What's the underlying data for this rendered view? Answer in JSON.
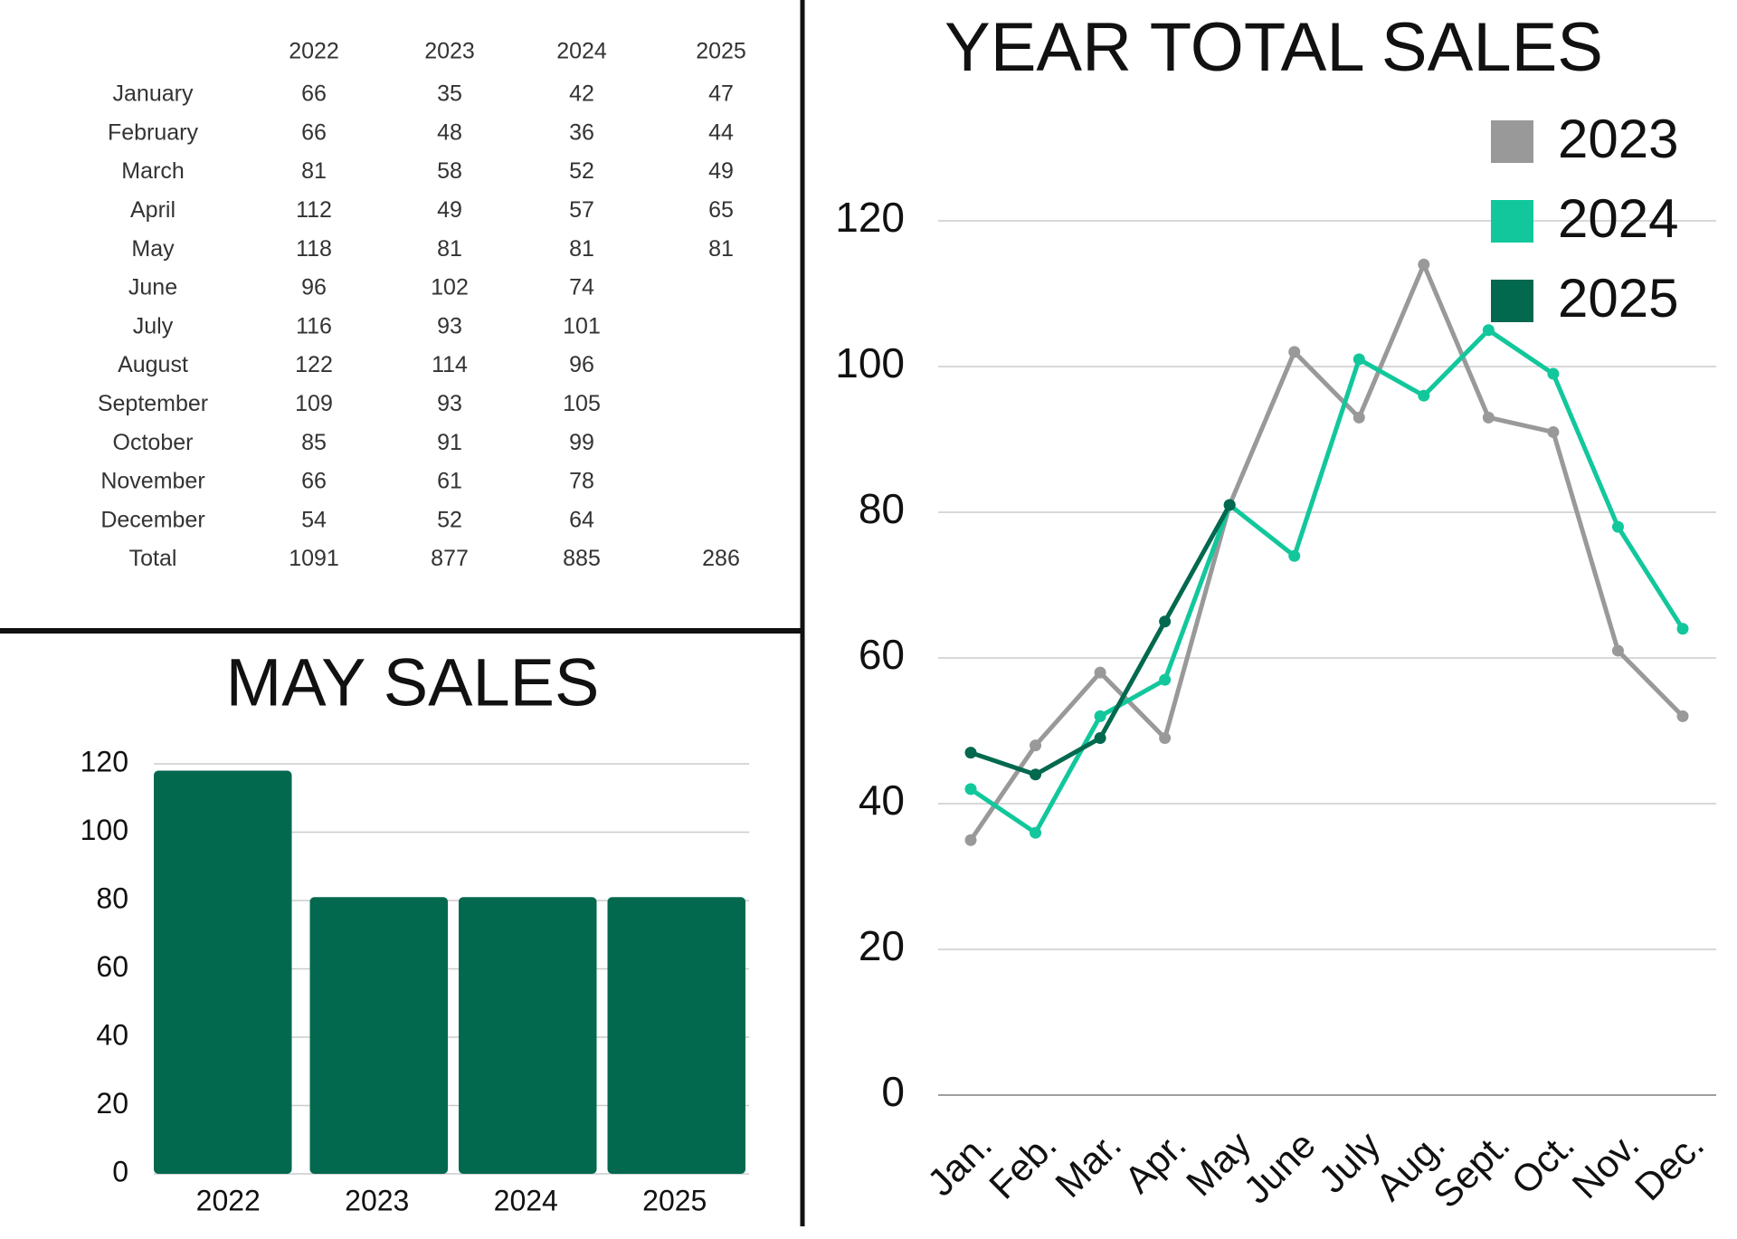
{
  "table": {
    "header": [
      "2022",
      "2023",
      "2024",
      "2025"
    ],
    "rows": [
      [
        "January",
        "66",
        "35",
        "42",
        "47"
      ],
      [
        "February",
        "66",
        "48",
        "36",
        "44"
      ],
      [
        "March",
        "81",
        "58",
        "52",
        "49"
      ],
      [
        "April",
        "112",
        "49",
        "57",
        "65"
      ],
      [
        "May",
        "118",
        "81",
        "81",
        "81"
      ],
      [
        "June",
        "96",
        "102",
        "74"
      ],
      [
        "July",
        "116",
        "93",
        "101"
      ],
      [
        "August",
        "122",
        "114",
        "96"
      ],
      [
        "September",
        "109",
        "93",
        "105"
      ],
      [
        "October",
        "85",
        "91",
        "99"
      ],
      [
        "November",
        "66",
        "61",
        "78"
      ],
      [
        "December",
        "54",
        "52",
        "64"
      ],
      [
        "Total",
        "1091",
        "877",
        "885",
        "286"
      ]
    ]
  },
  "chart_data": [
    {
      "type": "bar",
      "title": "MAY SALES",
      "categories": [
        "2022",
        "2023",
        "2024",
        "2025"
      ],
      "values": [
        118,
        81,
        81,
        81
      ],
      "color": "#02694f",
      "ylim": [
        0,
        120
      ],
      "yticks": [
        0,
        20,
        40,
        60,
        80,
        100,
        120
      ],
      "grid": true
    },
    {
      "type": "line",
      "title": "YEAR TOTAL SALES",
      "categories": [
        "Jan.",
        "Feb.",
        "Mar.",
        "Apr.",
        "May",
        "June",
        "July",
        "Aug.",
        "Sept.",
        "Oct.",
        "Nov.",
        "Dec."
      ],
      "series": [
        {
          "name": "2023",
          "color": "#999999",
          "values": [
            35,
            48,
            58,
            49,
            81,
            102,
            93,
            114,
            93,
            91,
            61,
            52
          ]
        },
        {
          "name": "2024",
          "color": "#12c79b",
          "values": [
            42,
            36,
            52,
            57,
            81,
            74,
            101,
            96,
            105,
            99,
            78,
            64
          ]
        },
        {
          "name": "2025",
          "color": "#02694f",
          "values": [
            47,
            44,
            49,
            65,
            81,
            null,
            null,
            null,
            null,
            null,
            null,
            null
          ]
        }
      ],
      "ylim": [
        0,
        120
      ],
      "yticks": [
        0,
        20,
        40,
        60,
        80,
        100,
        120
      ],
      "grid": true,
      "legend": "upper right"
    }
  ]
}
